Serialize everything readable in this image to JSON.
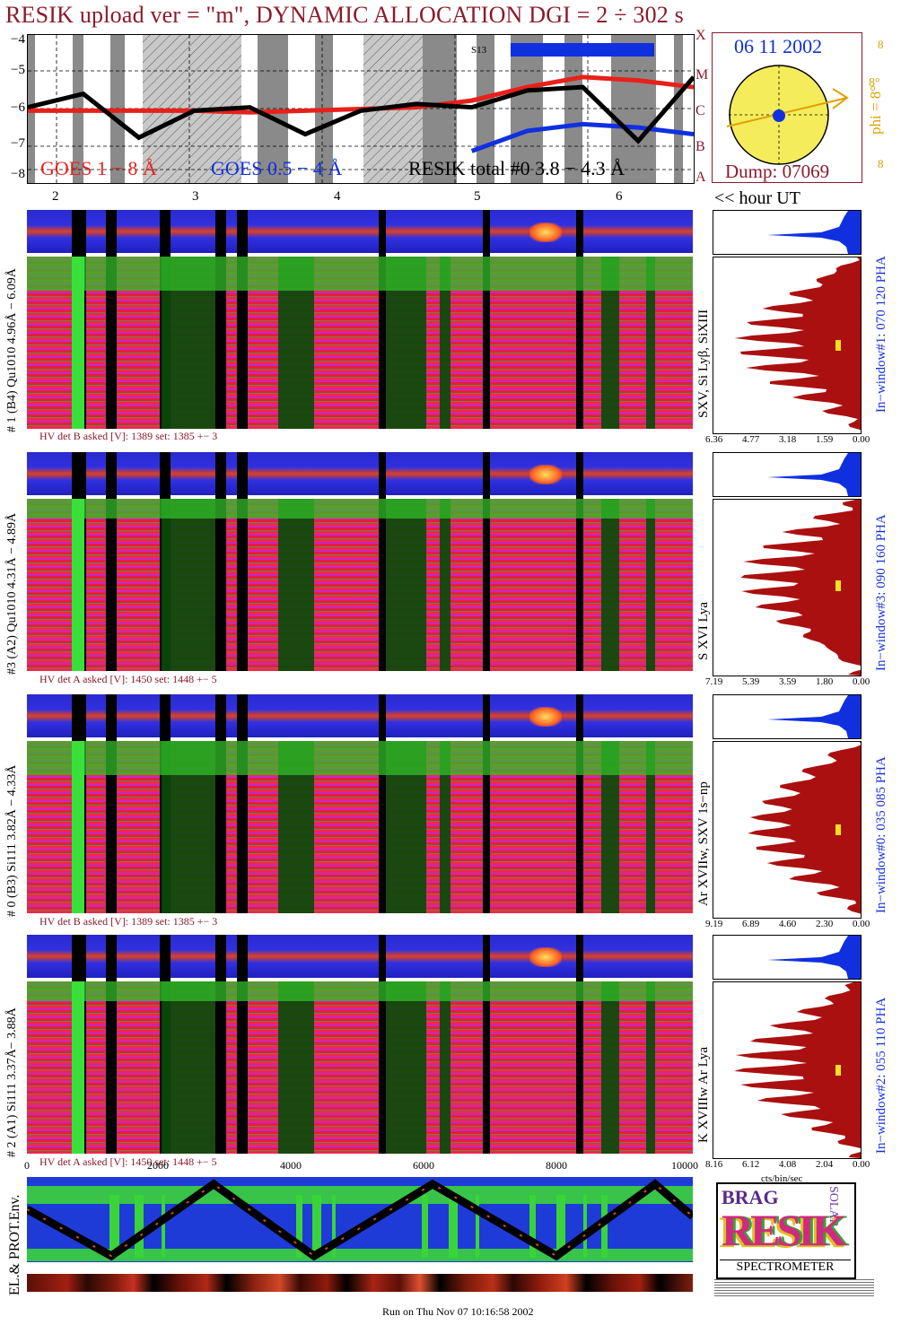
{
  "title": "RESIK upload ver = \"m\", DYNAMIC ALLOCATION  DGI =   2 ÷ 302 s",
  "goes": {
    "y_ticks": [
      "−4",
      "−5",
      "−6",
      "−7",
      "−8"
    ],
    "legend_red": "GOES 1 − 8 Å",
    "legend_blue": "GOES 0.5 − 4 Å",
    "legend_black": "RESIK total #0  3.8 − 4.3 Å",
    "class_letters": [
      "X",
      "M",
      "C",
      "B",
      "A"
    ],
    "s13_label": "S13",
    "colors": {
      "red": "#e8201a",
      "blue": "#1030e0",
      "black": "#000000",
      "gray": "#8a8a8a"
    }
  },
  "sun": {
    "date": "06 11 2002",
    "dump": "Dump: 07069",
    "phi": "phi = 8°",
    "eight_top": "8",
    "eight_mid": "8°",
    "eight_bottom": "8"
  },
  "hour_axis": {
    "ticks": [
      "2",
      "3",
      "4",
      "5",
      "6"
    ],
    "label": "<< hour UT"
  },
  "detectors": [
    {
      "left_label": "# 1 (B4) Qu1010 4.96Å − 6.09Å",
      "hv": "HV det B asked [V]:  1389 set:  1385 +−   3",
      "right_label": "SXV, Si Lyβ, SiXIII",
      "window": "In−window#1:  070 120 PHA",
      "scale": [
        "6.36",
        "4.77",
        "3.18",
        "1.59",
        "0.00"
      ]
    },
    {
      "left_label": "#3 (A2) Qu1010  4.31Å − 4.89Å",
      "hv": "HV det A asked [V]:  1450 set:  1448 +−   5",
      "right_label": "S XVI Lya",
      "window": "In−window#3:  090 160 PHA",
      "scale": [
        "7.19",
        "5.39",
        "3.59",
        "1.80",
        "0.00"
      ]
    },
    {
      "left_label": "# 0 (B3) Si111  3.82Å − 4.33Å",
      "hv": "HV det B asked [V]:  1389 set:  1385 +−   3",
      "right_label": "Ar XVIIw,  SXV  1s−np",
      "window": "In−window#0:  035 085 PHA",
      "scale": [
        "9.19",
        "6.89",
        "4.60",
        "2.30",
        "0.00"
      ]
    },
    {
      "left_label": "# 2 (A1) Si111  3.37Å− 3.88Å",
      "hv": "HV det A asked [V]:  1450 set:  1448 +−   5",
      "right_label": "K XVIIIw  Ar Lya",
      "window": "In−window#2:  055 110 PHA",
      "scale": [
        "8.16",
        "6.12",
        "4.08",
        "2.04",
        "0.00"
      ]
    }
  ],
  "x_axis": {
    "ticks": [
      "0",
      "2000",
      "4000",
      "6000",
      "8000",
      "10000"
    ],
    "unit": "cts/bin/sec"
  },
  "env_label": "EL.& PROT.Env.",
  "logo": {
    "top": "BRAG",
    "main": "RESIK",
    "side": "SOLAR",
    "bottom": "SPECTROMETER"
  },
  "footer": "Run on Thu Nov 07 10:16:58 2002",
  "chart_data": {
    "type": "line",
    "title": "RESIK upload ver = \"m\", DYNAMIC ALLOCATION  DGI =   2 ÷ 302 s",
    "xlabel": "hour UT",
    "ylabel": "",
    "x": [
      1.8,
      2.2,
      2.6,
      3.0,
      3.4,
      3.8,
      4.2,
      4.6,
      5.0,
      5.4,
      5.8,
      6.2,
      6.6
    ],
    "ylim": [
      -8,
      -4
    ],
    "series": [
      {
        "name": "GOES 1 − 8 Å",
        "values": [
          -6.1,
          -6.1,
          -6.1,
          -6.1,
          -6.15,
          -6.1,
          -6.05,
          -6.0,
          -5.8,
          -5.4,
          -5.1,
          -5.2,
          -5.4
        ]
      },
      {
        "name": "GOES 0.5 − 4 Å",
        "values": [
          null,
          null,
          null,
          null,
          null,
          null,
          null,
          null,
          -7.3,
          -6.7,
          -6.5,
          -6.6,
          -6.8
        ]
      },
      {
        "name": "RESIK total #0  3.8 − 4.3 Å",
        "values": [
          -6.0,
          -5.6,
          -6.9,
          -6.1,
          -6.0,
          -6.8,
          -6.1,
          -5.9,
          -6.0,
          -5.5,
          -5.4,
          -7.0,
          -5.1
        ]
      }
    ]
  }
}
